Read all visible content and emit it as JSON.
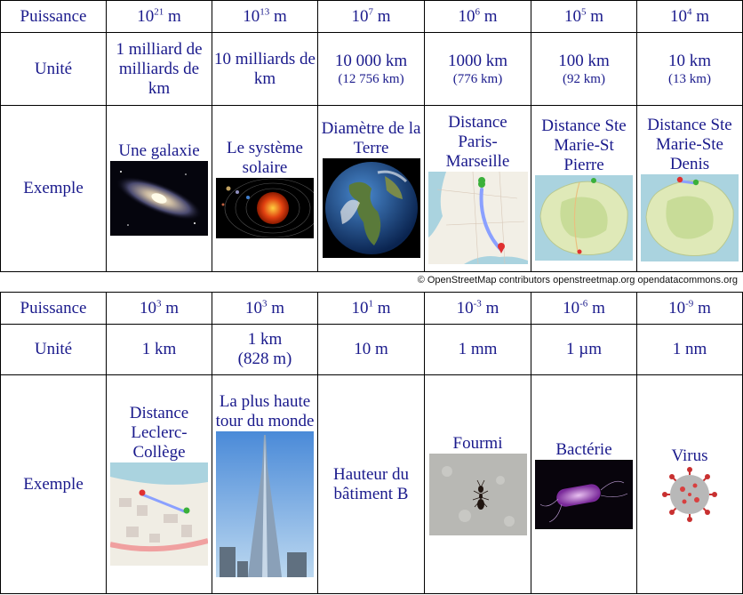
{
  "row_labels": {
    "puissance": "Puissance",
    "unite": "Unité",
    "exemple": "Exemple"
  },
  "table1": {
    "powers": [
      {
        "base": "10",
        "exp": "21",
        "unit": "m"
      },
      {
        "base": "10",
        "exp": "13",
        "unit": "m"
      },
      {
        "base": "10",
        "exp": "7",
        "unit": "m"
      },
      {
        "base": "10",
        "exp": "6",
        "unit": "m"
      },
      {
        "base": "10",
        "exp": "5",
        "unit": "m"
      },
      {
        "base": "10",
        "exp": "4",
        "unit": "m"
      }
    ],
    "units": [
      {
        "main": "1 milliard de milliards de km",
        "note": ""
      },
      {
        "main": "10 milliards de km",
        "note": ""
      },
      {
        "main": "10 000 km",
        "note": "(12 756 km)"
      },
      {
        "main": "1000 km",
        "note": "(776 km)"
      },
      {
        "main": "100 km",
        "note": "(92 km)"
      },
      {
        "main": "10 km",
        "note": "(13 km)"
      }
    ],
    "examples": [
      {
        "label": "Une galaxie",
        "icon": "galaxy-image"
      },
      {
        "label": "Le système solaire",
        "icon": "solar-system-image"
      },
      {
        "label": "Diamètre de la Terre",
        "icon": "earth-image"
      },
      {
        "label": "Distance Paris-Marseille",
        "icon": "france-map-image"
      },
      {
        "label": "Distance Ste Marie-St Pierre",
        "icon": "reunion-map-image"
      },
      {
        "label": "Distance Ste Marie-Ste Denis",
        "icon": "reunion-map-image"
      }
    ]
  },
  "credit": "© OpenStreetMap contributors openstreetmap.org opendatacommons.org",
  "table2": {
    "powers": [
      {
        "base": "10",
        "exp": "3",
        "unit": "m"
      },
      {
        "base": "10",
        "exp": "3",
        "unit": "m"
      },
      {
        "base": "10",
        "exp": "1",
        "unit": "m"
      },
      {
        "base": "10",
        "exp": "-3",
        "unit": "m"
      },
      {
        "base": "10",
        "exp": "-6",
        "unit": "m"
      },
      {
        "base": "10",
        "exp": "-9",
        "unit": "m"
      }
    ],
    "units": [
      {
        "main": "1 km",
        "note": ""
      },
      {
        "main": "1 km",
        "note": "(828 m)"
      },
      {
        "main": "10 m",
        "note": ""
      },
      {
        "main": "1 mm",
        "note": ""
      },
      {
        "main": "1 µm",
        "note": ""
      },
      {
        "main": "1 nm",
        "note": ""
      }
    ],
    "examples": [
      {
        "label": "Distance Leclerc-Collège",
        "icon": "town-map-image"
      },
      {
        "label": "La plus haute tour du monde",
        "icon": "burj-khalifa-image"
      },
      {
        "label": "Hauteur du bâtiment B",
        "icon": ""
      },
      {
        "label": "Fourmi",
        "icon": "ant-image"
      },
      {
        "label": "Bactérie",
        "icon": "bacterium-image"
      },
      {
        "label": "Virus",
        "icon": "virus-image"
      }
    ]
  }
}
